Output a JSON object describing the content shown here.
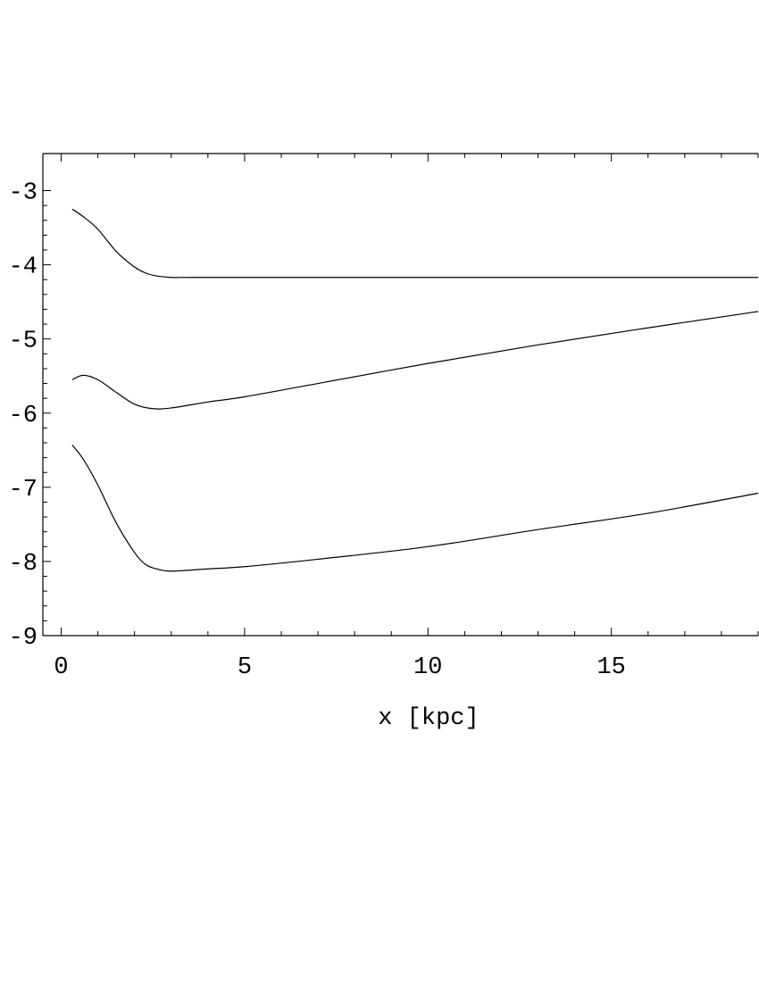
{
  "chart_data": {
    "type": "line",
    "title": "",
    "xlabel": "x [kpc]",
    "ylabel": "",
    "xlim": [
      -0.5,
      19
    ],
    "ylim": [
      -9,
      -2.5
    ],
    "x_ticks": [
      0,
      5,
      10,
      15
    ],
    "x_tick_labels": [
      "0",
      "5",
      "10",
      "15"
    ],
    "y_ticks": [
      -3,
      -4,
      -5,
      -6,
      -7,
      -8,
      -9
    ],
    "y_tick_labels": [
      "-3",
      "-4",
      "-5",
      "-6",
      "-7",
      "-8",
      "-9"
    ],
    "grid": false,
    "legend": "none",
    "series": [
      {
        "x": [
          0.3,
          0.6,
          1.0,
          1.5,
          2.0,
          2.3,
          2.6,
          3.0,
          3.5,
          5,
          10,
          15,
          19
        ],
        "y": [
          -3.25,
          -3.35,
          -3.52,
          -3.82,
          -4.03,
          -4.11,
          -4.15,
          -4.17,
          -4.17,
          -4.17,
          -4.17,
          -4.17,
          -4.17
        ]
      },
      {
        "x": [
          0.3,
          0.6,
          1.0,
          1.5,
          2.0,
          2.5,
          3.0,
          4,
          5,
          7,
          10,
          13,
          16,
          19
        ],
        "y": [
          -5.55,
          -5.49,
          -5.55,
          -5.72,
          -5.88,
          -5.94,
          -5.93,
          -5.85,
          -5.78,
          -5.6,
          -5.33,
          -5.08,
          -4.85,
          -4.63
        ]
      },
      {
        "x": [
          0.3,
          0.6,
          1.0,
          1.5,
          2.0,
          2.3,
          2.6,
          3.0,
          4,
          5,
          7,
          10,
          13,
          16,
          19
        ],
        "y": [
          -6.43,
          -6.62,
          -6.97,
          -7.48,
          -7.88,
          -8.04,
          -8.1,
          -8.13,
          -8.1,
          -8.07,
          -7.97,
          -7.8,
          -7.57,
          -7.35,
          -7.08
        ]
      }
    ]
  }
}
